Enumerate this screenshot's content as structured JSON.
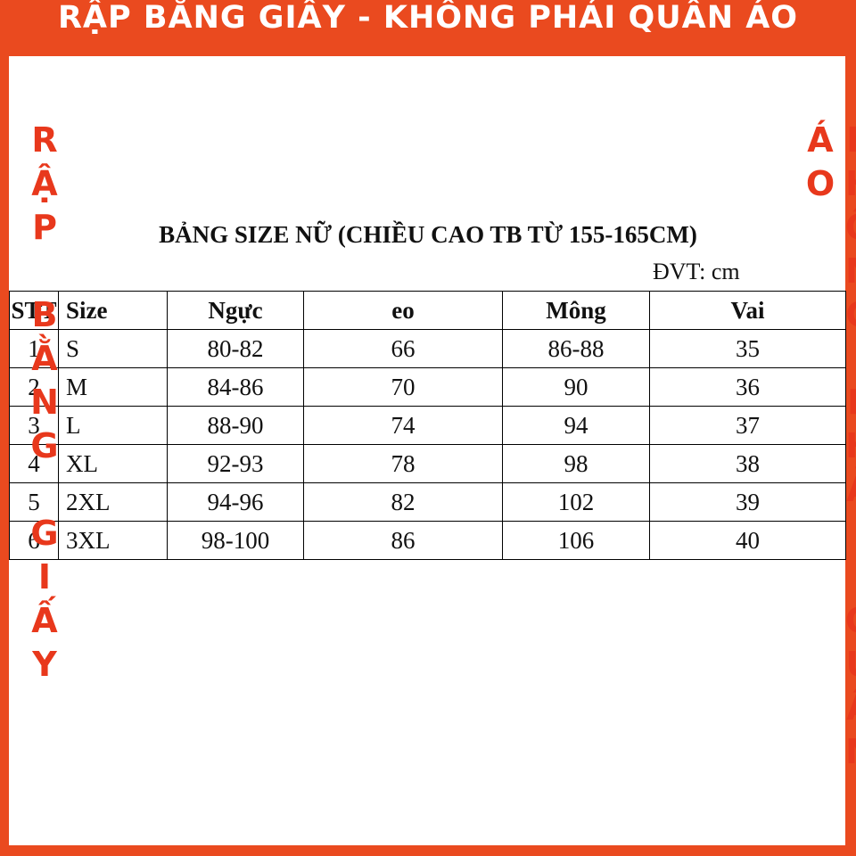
{
  "banner": "RẬP BẰNG GIẤY - KHÔNG PHẢI QUẦN ÁO",
  "left_vertical": "RẬP BẰNG GIẤY",
  "right_vertical": "KHÔNG PHẢI QUẦN ÁO",
  "table": {
    "title": "BẢNG SIZE NỮ (CHIỀU CAO TB TỪ 155-165CM)",
    "unit": "ĐVT: cm",
    "header": [
      "STT",
      "Size",
      "Ngực",
      "eo",
      "Mông",
      "Vai"
    ],
    "rows": [
      [
        "1",
        "S",
        "80-82",
        "66",
        "86-88",
        "35"
      ],
      [
        "2",
        "M",
        "84-86",
        "70",
        "90",
        "36"
      ],
      [
        "3",
        "L",
        "88-90",
        "74",
        "94",
        "37"
      ],
      [
        "4",
        "XL",
        "92-93",
        "78",
        "98",
        "38"
      ],
      [
        "5",
        "2XL",
        "94-96",
        "82",
        "102",
        "39"
      ],
      [
        "6",
        "3XL",
        "98-100",
        "86",
        "106",
        "40"
      ]
    ]
  }
}
